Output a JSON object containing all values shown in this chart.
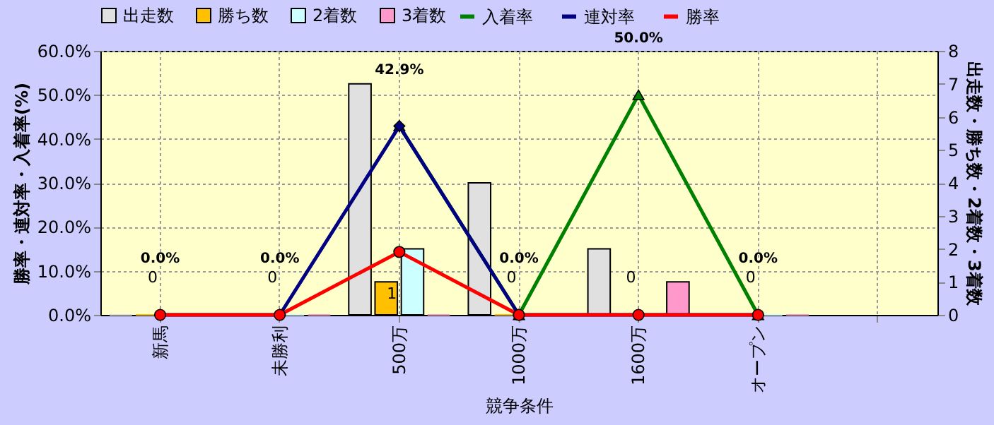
{
  "chart_data": {
    "type": "bar",
    "xlabel": "競争条件",
    "ylabel": "勝率・連対率・入着率(%)",
    "y2label": "出走数・勝ち数・2着数・3着数",
    "categories": [
      "新馬",
      "未勝利",
      "500万",
      "1000万",
      "1600万",
      "オープン",
      null
    ],
    "series": [
      {
        "name": "出走数",
        "axis": "y2",
        "color": "#e0e0e0",
        "values": [
          0,
          0,
          7,
          4,
          2,
          0,
          null
        ]
      },
      {
        "name": "勝ち数",
        "axis": "y2",
        "color": "#ffc000",
        "values": [
          0,
          0,
          1,
          0,
          0,
          0,
          null
        ],
        "value_labels": [
          "0",
          "0",
          "1",
          "0",
          "0",
          "0",
          null
        ]
      },
      {
        "name": "2着数",
        "axis": "y2",
        "color": "#ccffff",
        "values": [
          0,
          0,
          2,
          0,
          0,
          0,
          null
        ]
      },
      {
        "name": "3着数",
        "axis": "y2",
        "color": "#ff99cc",
        "values": [
          0,
          0,
          0,
          0,
          1,
          0,
          null
        ]
      },
      {
        "name": "入着率",
        "type": "line",
        "marker": "triangle",
        "color": "#008000",
        "values": [
          null,
          null,
          42.9,
          0,
          50.0,
          0,
          null
        ],
        "value_labels": [
          null,
          null,
          "42.9%",
          "0.0%",
          "50.0%",
          "0.0%",
          null
        ]
      },
      {
        "name": "連対率",
        "type": "line",
        "marker": "diamond",
        "color": "#000080",
        "values": [
          0,
          0,
          42.9,
          0,
          0,
          0,
          null
        ],
        "value_labels": [
          "0.0%",
          "0.0%",
          null,
          null,
          null,
          null,
          null
        ]
      },
      {
        "name": "勝率",
        "type": "line",
        "marker": "circle",
        "color": "#ff0000",
        "values": [
          0,
          0,
          14.3,
          0,
          0,
          0,
          null
        ]
      }
    ],
    "ylim": [
      0,
      60
    ],
    "yticks": [
      {
        "value": 0,
        "label": "0.0%"
      },
      {
        "value": 10,
        "label": "10.0%"
      },
      {
        "value": 20,
        "label": "20.0%"
      },
      {
        "value": 30,
        "label": "30.0%"
      },
      {
        "value": 40,
        "label": "40.0%"
      },
      {
        "value": 50,
        "label": "50.0%"
      },
      {
        "value": 60,
        "label": "60.0%"
      }
    ],
    "y2lim": [
      0,
      8
    ],
    "y2ticks": [
      0,
      1,
      2,
      3,
      4,
      5,
      6,
      7,
      8
    ],
    "grid": true,
    "legend": "top"
  }
}
